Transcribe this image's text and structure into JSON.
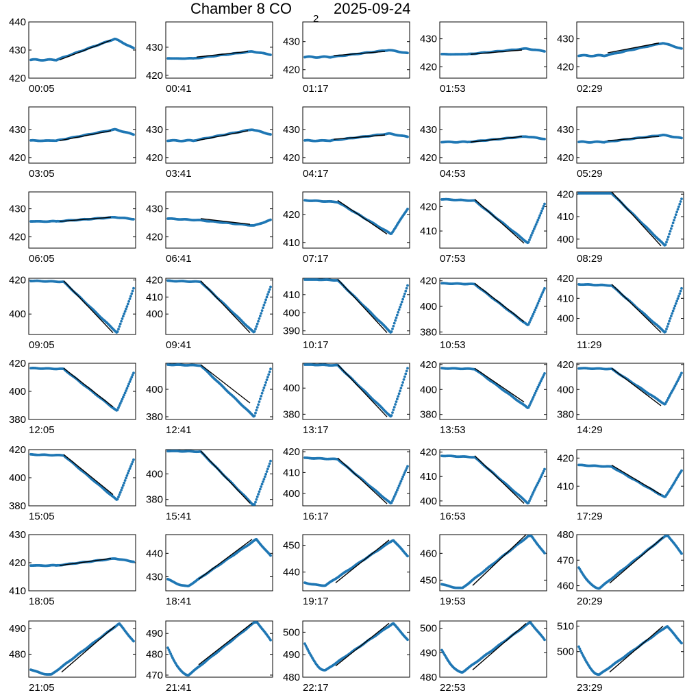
{
  "title": {
    "main": "Chamber 8 CO",
    "sub": "2",
    "date": "2025-09-24"
  },
  "colors": {
    "points": "#1f77b4",
    "fit": "#000000",
    "axes": "#000000"
  },
  "chart_data": {
    "type": "scatter",
    "grid": false,
    "panels": [
      {
        "label": "00:05",
        "yticks": [
          420,
          430,
          440
        ],
        "ylim": [
          420,
          440
        ],
        "profile": "rise",
        "base": 426.5,
        "peak": 434,
        "dip": 0,
        "fit": [
          426.5,
          433.5
        ]
      },
      {
        "label": "00:41",
        "yticks": [
          420,
          430
        ],
        "ylim": [
          419,
          439
        ],
        "profile": "rise",
        "base": 426,
        "peak": 428.5,
        "dip": 0,
        "fit": [
          426.5,
          428.5
        ]
      },
      {
        "label": "01:17",
        "yticks": [
          420,
          430
        ],
        "ylim": [
          417,
          437
        ],
        "profile": "rise",
        "base": 424.5,
        "peak": 427,
        "dip": 0,
        "fit": [
          425,
          426.5
        ]
      },
      {
        "label": "01:53",
        "yticks": [
          420,
          430
        ],
        "ylim": [
          416,
          436
        ],
        "profile": "rise",
        "base": 424.5,
        "peak": 426.5,
        "dip": 0,
        "fit": [
          424.5,
          426
        ]
      },
      {
        "label": "02:29",
        "yticks": [
          420,
          430
        ],
        "ylim": [
          416,
          436
        ],
        "profile": "rise",
        "base": 424,
        "peak": 428.5,
        "dip": 0,
        "fit": [
          425,
          428.5
        ]
      },
      {
        "label": "03:05",
        "yticks": [
          420,
          430
        ],
        "ylim": [
          418,
          438
        ],
        "profile": "rise",
        "base": 426,
        "peak": 430,
        "dip": 0,
        "fit": [
          426,
          429.5
        ]
      },
      {
        "label": "03:41",
        "yticks": [
          420,
          430
        ],
        "ylim": [
          418,
          438
        ],
        "profile": "rise",
        "base": 426,
        "peak": 430,
        "dip": 0,
        "fit": [
          426,
          429.5
        ]
      },
      {
        "label": "04:17",
        "yticks": [
          420,
          430
        ],
        "ylim": [
          418,
          438
        ],
        "profile": "rise",
        "base": 426,
        "peak": 428.5,
        "dip": 0,
        "fit": [
          426.5,
          428
        ]
      },
      {
        "label": "04:53",
        "yticks": [
          420,
          430
        ],
        "ylim": [
          418,
          438
        ],
        "profile": "rise",
        "base": 425.5,
        "peak": 427.5,
        "dip": 0,
        "fit": [
          425.5,
          427.5
        ]
      },
      {
        "label": "05:29",
        "yticks": [
          420,
          430
        ],
        "ylim": [
          418,
          438
        ],
        "profile": "rise",
        "base": 425.5,
        "peak": 428,
        "dip": 0,
        "fit": [
          426,
          427.5
        ]
      },
      {
        "label": "06:05",
        "yticks": [
          420,
          430
        ],
        "ylim": [
          416,
          436
        ],
        "profile": "rise",
        "base": 425.5,
        "peak": 427,
        "dip": 0,
        "fit": [
          425.5,
          427
        ]
      },
      {
        "label": "06:41",
        "yticks": [
          420,
          430
        ],
        "ylim": [
          416,
          436
        ],
        "profile": "fall",
        "base": 426.5,
        "peak": 426,
        "dip": 424,
        "fit": [
          426.5,
          424.5
        ]
      },
      {
        "label": "07:17",
        "yticks": [
          410,
          420
        ],
        "ylim": [
          408,
          428
        ],
        "profile": "fall",
        "base": 425,
        "peak": 422,
        "dip": 413,
        "fit": [
          425,
          413
        ]
      },
      {
        "label": "07:53",
        "yticks": [
          410,
          420
        ],
        "ylim": [
          403,
          426
        ],
        "profile": "fall",
        "base": 423,
        "peak": 421,
        "dip": 405,
        "fit": [
          423,
          405
        ]
      },
      {
        "label": "08:29",
        "yticks": [
          400,
          410,
          420
        ],
        "ylim": [
          396,
          421
        ],
        "profile": "fall",
        "base": 421,
        "peak": 418,
        "dip": 397,
        "fit": [
          421,
          397
        ]
      },
      {
        "label": "09:05",
        "yticks": [
          400,
          420
        ],
        "ylim": [
          388,
          421
        ],
        "profile": "fall",
        "base": 419.5,
        "peak": 415,
        "dip": 389,
        "fit": [
          419.5,
          389
        ]
      },
      {
        "label": "09:41",
        "yticks": [
          400,
          410,
          420
        ],
        "ylim": [
          388,
          421
        ],
        "profile": "fall",
        "base": 419.5,
        "peak": 416,
        "dip": 389,
        "fit": [
          419.5,
          389
        ]
      },
      {
        "label": "10:17",
        "yticks": [
          390,
          400,
          410
        ],
        "ylim": [
          388,
          419
        ],
        "profile": "fall",
        "base": 418.5,
        "peak": 415,
        "dip": 389,
        "fit": [
          418.5,
          389
        ]
      },
      {
        "label": "10:53",
        "yticks": [
          380,
          400,
          420
        ],
        "ylim": [
          378,
          422
        ],
        "profile": "fall",
        "base": 418,
        "peak": 414,
        "dip": 385,
        "fit": [
          418,
          388
        ]
      },
      {
        "label": "11:29",
        "yticks": [
          400,
          410,
          420
        ],
        "ylim": [
          392,
          420
        ],
        "profile": "fall",
        "base": 417,
        "peak": 415,
        "dip": 393,
        "fit": [
          417,
          393
        ]
      },
      {
        "label": "12:05",
        "yticks": [
          380,
          400,
          420
        ],
        "ylim": [
          380,
          420
        ],
        "profile": "fall",
        "base": 416.5,
        "peak": 413,
        "dip": 386,
        "fit": [
          416.5,
          389
        ]
      },
      {
        "label": "12:41",
        "yticks": [
          380,
          400
        ],
        "ylim": [
          378,
          419
        ],
        "profile": "fall",
        "base": 418,
        "peak": 415,
        "dip": 380,
        "fit": [
          418,
          390
        ]
      },
      {
        "label": "13:17",
        "yticks": [
          380,
          400
        ],
        "ylim": [
          376,
          419
        ],
        "profile": "fall",
        "base": 418,
        "peak": 415,
        "dip": 378,
        "fit": [
          418,
          378
        ]
      },
      {
        "label": "13:53",
        "yticks": [
          380,
          400,
          420
        ],
        "ylim": [
          376,
          421
        ],
        "profile": "fall",
        "base": 417,
        "peak": 413,
        "dip": 385,
        "fit": [
          417,
          390
        ]
      },
      {
        "label": "14:29",
        "yticks": [
          380,
          400,
          420
        ],
        "ylim": [
          376,
          421
        ],
        "profile": "fall",
        "base": 417,
        "peak": 413,
        "dip": 388,
        "fit": [
          417,
          387
        ]
      },
      {
        "label": "15:05",
        "yticks": [
          380,
          400,
          420
        ],
        "ylim": [
          380,
          420
        ],
        "profile": "fall",
        "base": 416.5,
        "peak": 413,
        "dip": 384,
        "fit": [
          416.5,
          388
        ]
      },
      {
        "label": "15:41",
        "yticks": [
          380,
          400
        ],
        "ylim": [
          375,
          419
        ],
        "profile": "fall",
        "base": 418,
        "peak": 410,
        "dip": 375,
        "fit": [
          418,
          377
        ]
      },
      {
        "label": "16:17",
        "yticks": [
          400,
          410,
          420
        ],
        "ylim": [
          394,
          421
        ],
        "profile": "fall",
        "base": 417,
        "peak": 413,
        "dip": 395,
        "fit": [
          417,
          395
        ]
      },
      {
        "label": "16:53",
        "yticks": [
          400,
          410,
          420
        ],
        "ylim": [
          398,
          421
        ],
        "profile": "fall",
        "base": 418.5,
        "peak": 413,
        "dip": 399,
        "fit": [
          418.5,
          399
        ]
      },
      {
        "label": "17:29",
        "yticks": [
          410,
          420
        ],
        "ylim": [
          403,
          423
        ],
        "profile": "fall",
        "base": 417.5,
        "peak": 415.5,
        "dip": 406,
        "fit": [
          417.5,
          407
        ]
      },
      {
        "label": "18:05",
        "yticks": [
          410,
          420,
          430
        ],
        "ylim": [
          410,
          430
        ],
        "profile": "rise",
        "base": 419,
        "peak": 421.5,
        "dip": 0,
        "fit": [
          419,
          421.5
        ]
      },
      {
        "label": "18:41",
        "yticks": [
          430,
          440
        ],
        "ylim": [
          424,
          448
        ],
        "profile": "vee",
        "base": 429,
        "peak": 446,
        "dip": 426,
        "fit": [
          429,
          446
        ]
      },
      {
        "label": "19:17",
        "yticks": [
          440,
          450
        ],
        "ylim": [
          433,
          454
        ],
        "profile": "vee",
        "base": 436,
        "peak": 452,
        "dip": 435,
        "fit": [
          436,
          452
        ]
      },
      {
        "label": "19:53",
        "yticks": [
          450,
          460
        ],
        "ylim": [
          446,
          467
        ],
        "profile": "vee",
        "base": 448.5,
        "peak": 467,
        "dip": 447,
        "fit": [
          448,
          467
        ]
      },
      {
        "label": "20:29",
        "yticks": [
          460,
          470,
          480
        ],
        "ylim": [
          458,
          480
        ],
        "profile": "vee",
        "base": 467,
        "peak": 480,
        "dip": 459,
        "fit": [
          461,
          479
        ]
      },
      {
        "label": "21:05",
        "yticks": [
          480,
          490
        ],
        "ylim": [
          471,
          493
        ],
        "profile": "vee",
        "base": 474,
        "peak": 492,
        "dip": 472,
        "fit": [
          473,
          491
        ]
      },
      {
        "label": "21:41",
        "yticks": [
          470,
          480,
          490
        ],
        "ylim": [
          469,
          496
        ],
        "profile": "vee",
        "base": 483,
        "peak": 496,
        "dip": 470,
        "fit": [
          475,
          495
        ]
      },
      {
        "label": "22:17",
        "yticks": [
          480,
          490,
          500
        ],
        "ylim": [
          480,
          505
        ],
        "profile": "vee",
        "base": 495,
        "peak": 504,
        "dip": 483,
        "fit": [
          485,
          504
        ]
      },
      {
        "label": "22:53",
        "yticks": [
          480,
          490,
          500
        ],
        "ylim": [
          480,
          503
        ],
        "profile": "vee",
        "base": 491,
        "peak": 502.5,
        "dip": 482,
        "fit": [
          483,
          502
        ]
      },
      {
        "label": "23:29",
        "yticks": [
          500,
          510
        ],
        "ylim": [
          490,
          512
        ],
        "profile": "vee",
        "base": 502,
        "peak": 510,
        "dip": 491,
        "fit": [
          492,
          510
        ]
      }
    ]
  }
}
